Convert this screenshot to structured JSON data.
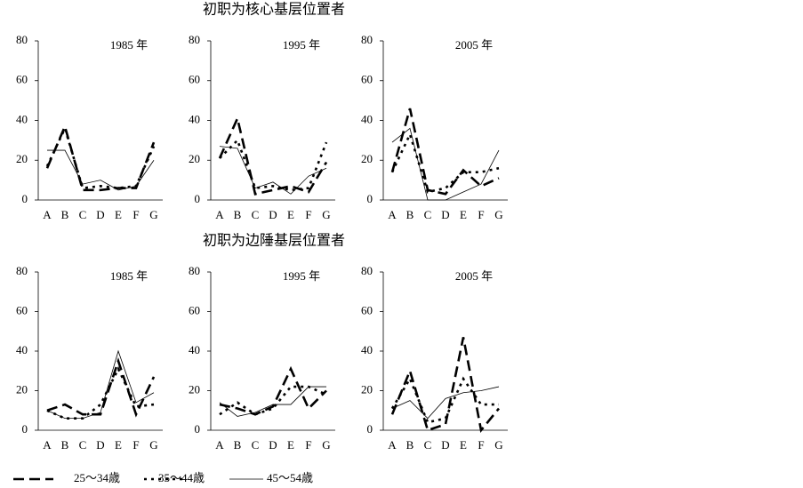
{
  "chart_data": [
    {
      "type": "line",
      "heading": "初职为核心基层位置者",
      "title": "1985 年",
      "categories": [
        "A",
        "B",
        "C",
        "D",
        "E",
        "F",
        "G"
      ],
      "ylim": [
        0,
        80
      ],
      "yticks": [
        0,
        20,
        40,
        60,
        80
      ],
      "series": [
        {
          "name": "25～34歳",
          "color": "#000",
          "values": [
            16,
            37,
            5,
            5,
            6,
            6,
            29
          ]
        },
        {
          "name": "35～44歳",
          "color": "#000",
          "values": [
            17,
            36,
            6,
            7,
            6,
            7,
            27
          ]
        },
        {
          "name": "45～54歳",
          "color": "#000",
          "values": [
            25,
            25,
            8,
            10,
            5,
            7,
            20
          ]
        }
      ]
    },
    {
      "type": "line",
      "title": "1995 年",
      "categories": [
        "A",
        "B",
        "C",
        "D",
        "E",
        "F",
        "G"
      ],
      "ylim": [
        0,
        80
      ],
      "yticks": [
        0,
        20,
        40,
        60,
        80
      ],
      "series": [
        {
          "name": "25～34歳",
          "color": "#000",
          "values": [
            21,
            41,
            3,
            5,
            7,
            4,
            19
          ]
        },
        {
          "name": "35～44歳",
          "color": "#000",
          "values": [
            21,
            30,
            6,
            7,
            5,
            6,
            29
          ]
        },
        {
          "name": "45～54歳",
          "color": "#000",
          "values": [
            27,
            26,
            6,
            9,
            3,
            12,
            16
          ]
        }
      ]
    },
    {
      "type": "line",
      "title": "2005 年",
      "categories": [
        "A",
        "B",
        "C",
        "D",
        "E",
        "F",
        "G"
      ],
      "ylim": [
        0,
        80
      ],
      "yticks": [
        0,
        20,
        40,
        60,
        80
      ],
      "series": [
        {
          "name": "25～34歳",
          "color": "#000",
          "values": [
            14,
            46,
            5,
            3,
            15,
            7,
            11
          ]
        },
        {
          "name": "35～44歳",
          "color": "#000",
          "values": [
            14,
            33,
            4,
            6,
            14,
            14,
            16
          ]
        },
        {
          "name": "45～54歳",
          "color": "#000",
          "values": [
            29,
            36,
            0,
            0,
            4,
            8,
            25
          ]
        }
      ]
    },
    {
      "type": "line",
      "heading": "初职为边陲基层位置者",
      "title": "1985 年",
      "categories": [
        "A",
        "B",
        "C",
        "D",
        "E",
        "F",
        "G"
      ],
      "ylim": [
        0,
        80
      ],
      "yticks": [
        0,
        20,
        40,
        60,
        80
      ],
      "series": [
        {
          "name": "25～34歳",
          "color": "#000",
          "values": [
            10,
            13,
            8,
            8,
            35,
            8,
            27
          ]
        },
        {
          "name": "35～44歳",
          "color": "#000",
          "values": [
            10,
            6,
            6,
            13,
            31,
            12,
            13
          ]
        },
        {
          "name": "45～54歳",
          "color": "#000",
          "values": [
            10,
            6,
            6,
            9,
            40,
            14,
            19
          ]
        }
      ]
    },
    {
      "type": "line",
      "title": "1995 年",
      "categories": [
        "A",
        "B",
        "C",
        "D",
        "E",
        "F",
        "G"
      ],
      "ylim": [
        0,
        80
      ],
      "yticks": [
        0,
        20,
        40,
        60,
        80
      ],
      "series": [
        {
          "name": "25～34歳",
          "color": "#000",
          "values": [
            13,
            11,
            8,
            12,
            31,
            11,
            20
          ]
        },
        {
          "name": "35～44歳",
          "color": "#000",
          "values": [
            8,
            14,
            8,
            11,
            22,
            22,
            18
          ]
        },
        {
          "name": "45～54歳",
          "color": "#000",
          "values": [
            14,
            7,
            9,
            13,
            13,
            22,
            22
          ]
        }
      ]
    },
    {
      "type": "line",
      "title": "2005 年",
      "categories": [
        "A",
        "B",
        "C",
        "D",
        "E",
        "F",
        "G"
      ],
      "ylim": [
        0,
        80
      ],
      "yticks": [
        0,
        20,
        40,
        60,
        80
      ],
      "series": [
        {
          "name": "25～34歳",
          "color": "#000",
          "values": [
            8,
            30,
            0,
            3,
            47,
            0,
            11
          ]
        },
        {
          "name": "35～44歳",
          "color": "#000",
          "values": [
            11,
            26,
            4,
            6,
            26,
            13,
            13
          ]
        },
        {
          "name": "45～54歳",
          "color": "#000",
          "values": [
            11,
            15,
            6,
            16,
            19,
            20,
            22
          ]
        }
      ]
    }
  ]
}
